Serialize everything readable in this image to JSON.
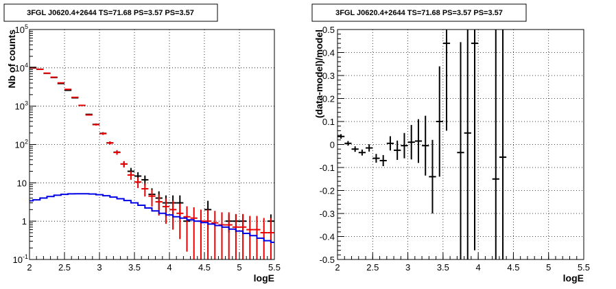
{
  "chart_data": [
    {
      "type": "scatter",
      "title": "3FGL J0620.4+2644 TS=71.68 PS=3.57 PS=3.57",
      "xlabel": "logE",
      "ylabel": "Nb of counts",
      "xlim": [
        2,
        5.5
      ],
      "ylim": [
        0.1,
        100000
      ],
      "yscale": "log",
      "grid": true,
      "xticks": [
        "2",
        "2.5",
        "3",
        "3.5",
        "4",
        "4.5",
        "5",
        "5.5"
      ],
      "yticks": [
        {
          "base": "10",
          "exp": "-1"
        },
        {
          "base": "1",
          "exp": ""
        },
        {
          "base": "10",
          "exp": ""
        },
        {
          "base": "10",
          "exp": "2"
        },
        {
          "base": "10",
          "exp": "3"
        },
        {
          "base": "10",
          "exp": "4"
        },
        {
          "base": "10",
          "exp": "5"
        }
      ],
      "series": [
        {
          "color": "#000000",
          "x": [
            2.05,
            2.15,
            2.25,
            2.35,
            2.45,
            2.55,
            2.65,
            2.75,
            2.85,
            2.95,
            3.05,
            3.15,
            3.25,
            3.35,
            3.45,
            3.55,
            3.65,
            3.75,
            3.85,
            3.95,
            4.05,
            4.15,
            4.25,
            4.55,
            4.85,
            4.95,
            5.05,
            5.45
          ],
          "y": [
            10200,
            9200,
            7200,
            5600,
            3900,
            2600,
            1650,
            1050,
            610,
            335,
            195,
            110,
            63,
            31,
            20,
            15,
            12,
            5,
            4,
            3,
            3,
            3,
            1,
            2,
            1,
            1,
            1,
            1
          ],
          "yerr": [
            100,
            96,
            85,
            75,
            62,
            51,
            41,
            32,
            25,
            18,
            14,
            10,
            8,
            5.6,
            4.5,
            3.9,
            3.5,
            2.2,
            2,
            1.7,
            1.7,
            1.7,
            0.5,
            1.4,
            0.5,
            0.5,
            0.5,
            0.5
          ]
        },
        {
          "color": "#e60000",
          "x": [
            2.05,
            2.15,
            2.25,
            2.35,
            2.45,
            2.55,
            2.65,
            2.75,
            2.85,
            2.95,
            3.05,
            3.15,
            3.25,
            3.35,
            3.45,
            3.55,
            3.65,
            3.75,
            3.85,
            3.95,
            4.05,
            4.15,
            4.25,
            4.35,
            4.45,
            4.55,
            4.65,
            4.75,
            4.85,
            4.95,
            5.05,
            5.15,
            5.25,
            5.35,
            5.45
          ],
          "y": [
            9900,
            9150,
            7250,
            5700,
            4050,
            2750,
            1700,
            1050,
            590,
            330,
            192,
            110,
            62,
            31,
            16,
            10.5,
            7,
            4.5,
            3.2,
            2.4,
            2,
            1.6,
            1.3,
            1.2,
            1,
            1,
            0.9,
            0.8,
            0.8,
            0.7,
            0.7,
            0.6,
            0.6,
            0.5,
            0.5
          ],
          "yerr": [
            100,
            96,
            85,
            75,
            64,
            52,
            41,
            32,
            24,
            18,
            14,
            10,
            8,
            5.6,
            4,
            3.2,
            2.6,
            2.1,
            1.8,
            1.55,
            1.4,
            1.26,
            1.14,
            1.1,
            1,
            1,
            0.95,
            0.9,
            0.9,
            0.84,
            0.84,
            0.77,
            0.77,
            0.71,
            0.71
          ]
        },
        {
          "type": "step",
          "color": "#0000e6",
          "x": [
            2.0,
            2.05,
            2.15,
            2.25,
            2.35,
            2.45,
            2.55,
            2.65,
            2.75,
            2.85,
            2.95,
            3.05,
            3.15,
            3.25,
            3.35,
            3.45,
            3.55,
            3.65,
            3.75,
            3.85,
            3.95,
            4.05,
            4.15,
            4.25,
            4.35,
            4.45,
            4.55,
            4.65,
            4.75,
            4.85,
            4.95,
            5.05,
            5.15,
            5.25,
            5.35,
            5.45,
            5.5
          ],
          "y": [
            3.4,
            3.6,
            4.0,
            4.4,
            4.75,
            5.0,
            5.15,
            5.2,
            5.2,
            5.1,
            4.9,
            4.6,
            4.25,
            3.85,
            3.45,
            3.0,
            2.6,
            2.2,
            1.85,
            1.6,
            1.45,
            1.3,
            1.2,
            1.08,
            1.0,
            0.92,
            0.84,
            0.77,
            0.7,
            0.62,
            0.55,
            0.48,
            0.42,
            0.36,
            0.31,
            0.28,
            0.28
          ]
        }
      ]
    },
    {
      "type": "scatter",
      "title": "3FGL J0620.4+2644 TS=71.68 PS=3.57 PS=3.57",
      "xlabel": "logE",
      "ylabel": "(data-model)/model",
      "xlim": [
        2,
        5.5
      ],
      "ylim": [
        -0.5,
        0.5
      ],
      "grid": true,
      "xticks": [
        "2",
        "2.5",
        "3",
        "3.5",
        "4",
        "4.5",
        "5",
        "5.5"
      ],
      "yticks": [
        "-0.5",
        "-0.4",
        "-0.3",
        "-0.2",
        "-0.1",
        "0",
        "0.1",
        "0.2",
        "0.3",
        "0.4",
        "0.5"
      ],
      "series": [
        {
          "color": "#000000",
          "x": [
            2.05,
            2.15,
            2.25,
            2.35,
            2.45,
            2.55,
            2.65,
            2.75,
            2.85,
            2.95,
            3.05,
            3.15,
            3.25,
            3.35,
            3.45,
            3.55,
            3.75,
            3.85,
            3.95,
            4.25,
            4.35
          ],
          "y": [
            0.035,
            0.005,
            -0.02,
            -0.035,
            -0.015,
            -0.06,
            -0.07,
            0.005,
            -0.025,
            -0.005,
            0.01,
            0.015,
            -0.005,
            -0.14,
            0.1,
            0.44,
            -0.035,
            0.05,
            0.44,
            -0.15,
            -0.055
          ],
          "yerr": [
            0.01,
            0.01,
            0.012,
            0.013,
            0.016,
            0.019,
            0.024,
            0.031,
            0.042,
            0.055,
            0.075,
            0.095,
            0.13,
            0.16,
            0.24,
            0.38,
            0.48,
            0.8,
            0.9,
            1.0,
            1.0
          ]
        }
      ]
    }
  ]
}
